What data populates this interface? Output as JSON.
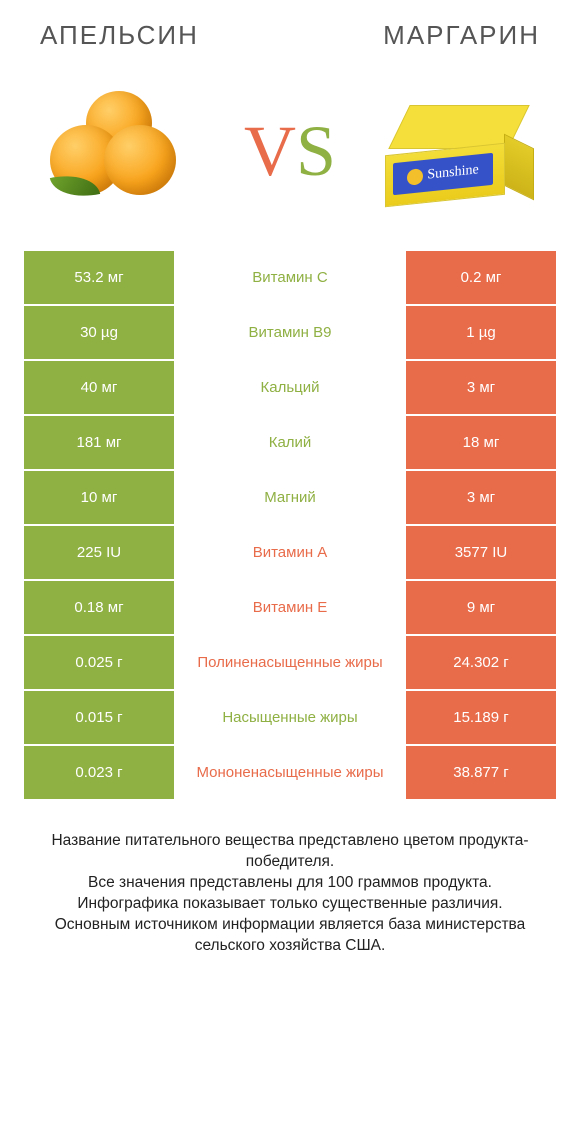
{
  "titles": {
    "left": "АПЕЛЬСИН",
    "right": "МАРГАРИН"
  },
  "vs": {
    "v": "V",
    "s": "S"
  },
  "colors": {
    "left": "#8fb043",
    "right": "#e86b4a",
    "text": "#222222",
    "bg": "#ffffff"
  },
  "rows": [
    {
      "left": "53.2 мг",
      "label": "Витамин C",
      "right": "0.2 мг",
      "winner": "left"
    },
    {
      "left": "30 µg",
      "label": "Витамин B9",
      "right": "1 µg",
      "winner": "left"
    },
    {
      "left": "40 мг",
      "label": "Кальций",
      "right": "3 мг",
      "winner": "left"
    },
    {
      "left": "181 мг",
      "label": "Калий",
      "right": "18 мг",
      "winner": "left"
    },
    {
      "left": "10 мг",
      "label": "Магний",
      "right": "3 мг",
      "winner": "left"
    },
    {
      "left": "225 IU",
      "label": "Витамин A",
      "right": "3577 IU",
      "winner": "right"
    },
    {
      "left": "0.18 мг",
      "label": "Витамин E",
      "right": "9 мг",
      "winner": "right"
    },
    {
      "left": "0.025 г",
      "label": "Полиненасыщенные жиры",
      "right": "24.302 г",
      "winner": "right"
    },
    {
      "left": "0.015 г",
      "label": "Насыщенные жиры",
      "right": "15.189 г",
      "winner": "left"
    },
    {
      "left": "0.023 г",
      "label": "Мононенасыщенные жиры",
      "right": "38.877 г",
      "winner": "right"
    }
  ],
  "footer": [
    "Название питательного вещества представлено цветом продукта-победителя.",
    "Все значения представлены для 100 граммов продукта.",
    "Инфографика показывает только существенные различия.",
    "Основным источником информации является база министерства сельского хозяйства США."
  ],
  "margarine_label": "Sunshine"
}
